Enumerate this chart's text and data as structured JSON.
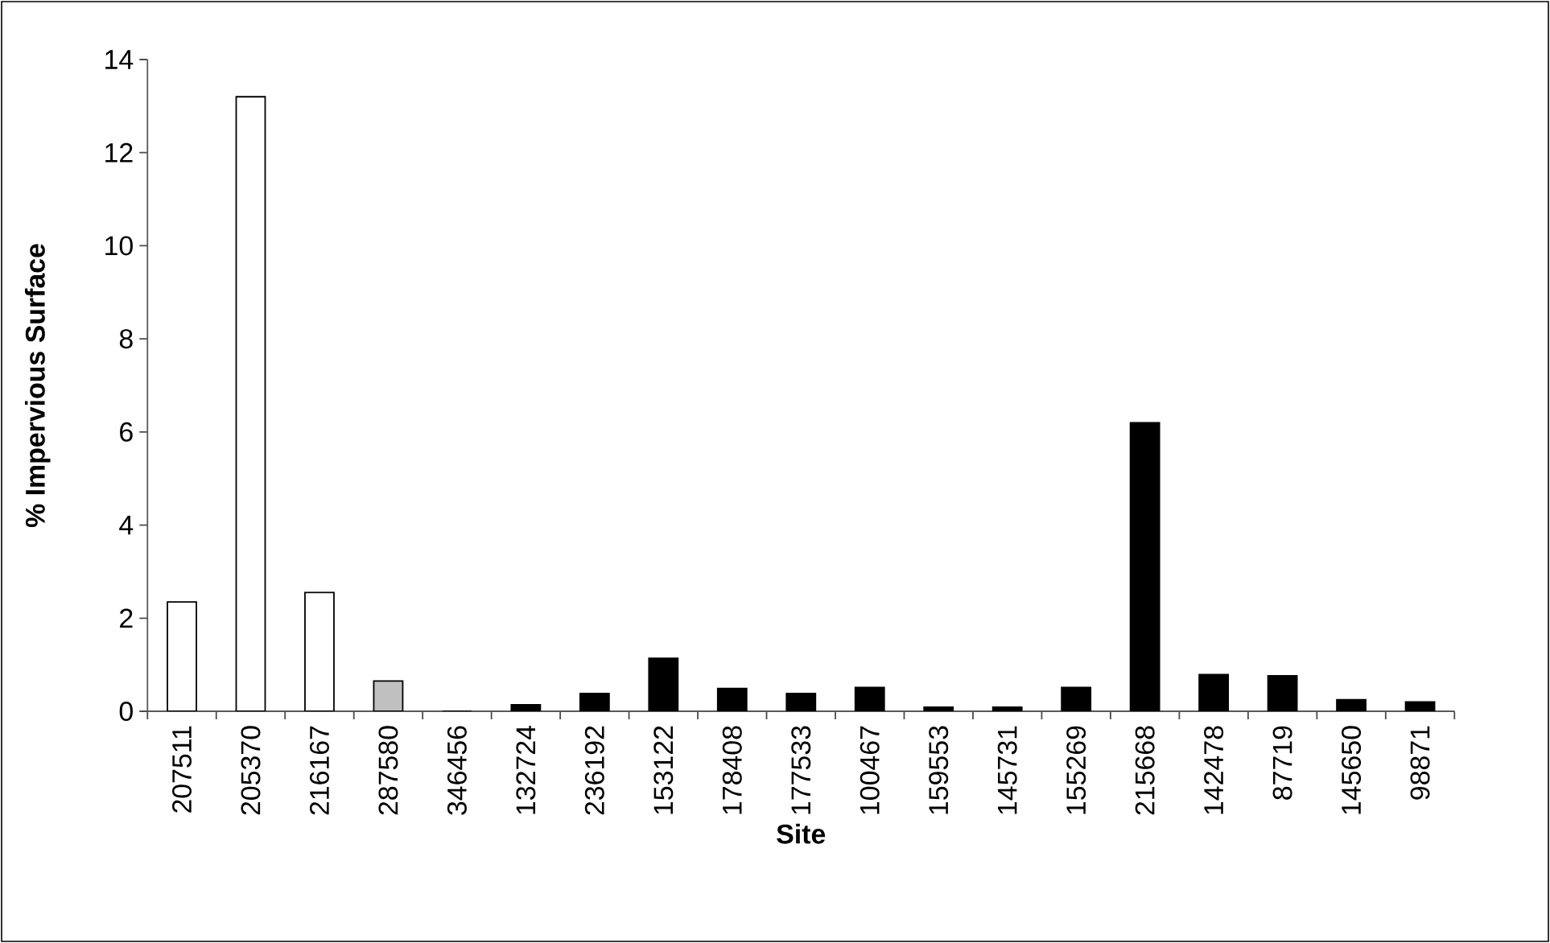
{
  "chart_data": {
    "type": "bar",
    "xlabel": "Site",
    "ylabel": "% Impervious Surface",
    "categories": [
      "207511",
      "205370",
      "216167",
      "287580",
      "346456",
      "132724",
      "236192",
      "153122",
      "178408",
      "177533",
      "100467",
      "159553",
      "145731",
      "155269",
      "215668",
      "142478",
      "87719",
      "145650",
      "98871"
    ],
    "values": [
      2.35,
      13.2,
      2.55,
      0.65,
      0,
      0.14,
      0.38,
      1.14,
      0.49,
      0.38,
      0.51,
      0.09,
      0.09,
      0.51,
      6.2,
      0.79,
      0.76,
      0.25,
      0.2
    ],
    "colors": [
      "#ffffff",
      "#ffffff",
      "#ffffff",
      "#c0c0c0",
      "#000000",
      "#000000",
      "#000000",
      "#000000",
      "#000000",
      "#000000",
      "#000000",
      "#000000",
      "#000000",
      "#000000",
      "#000000",
      "#000000",
      "#000000",
      "#000000",
      "#000000"
    ],
    "ylim": [
      0,
      14
    ],
    "yticks": [
      0,
      2,
      4,
      6,
      8,
      10,
      12,
      14
    ]
  }
}
